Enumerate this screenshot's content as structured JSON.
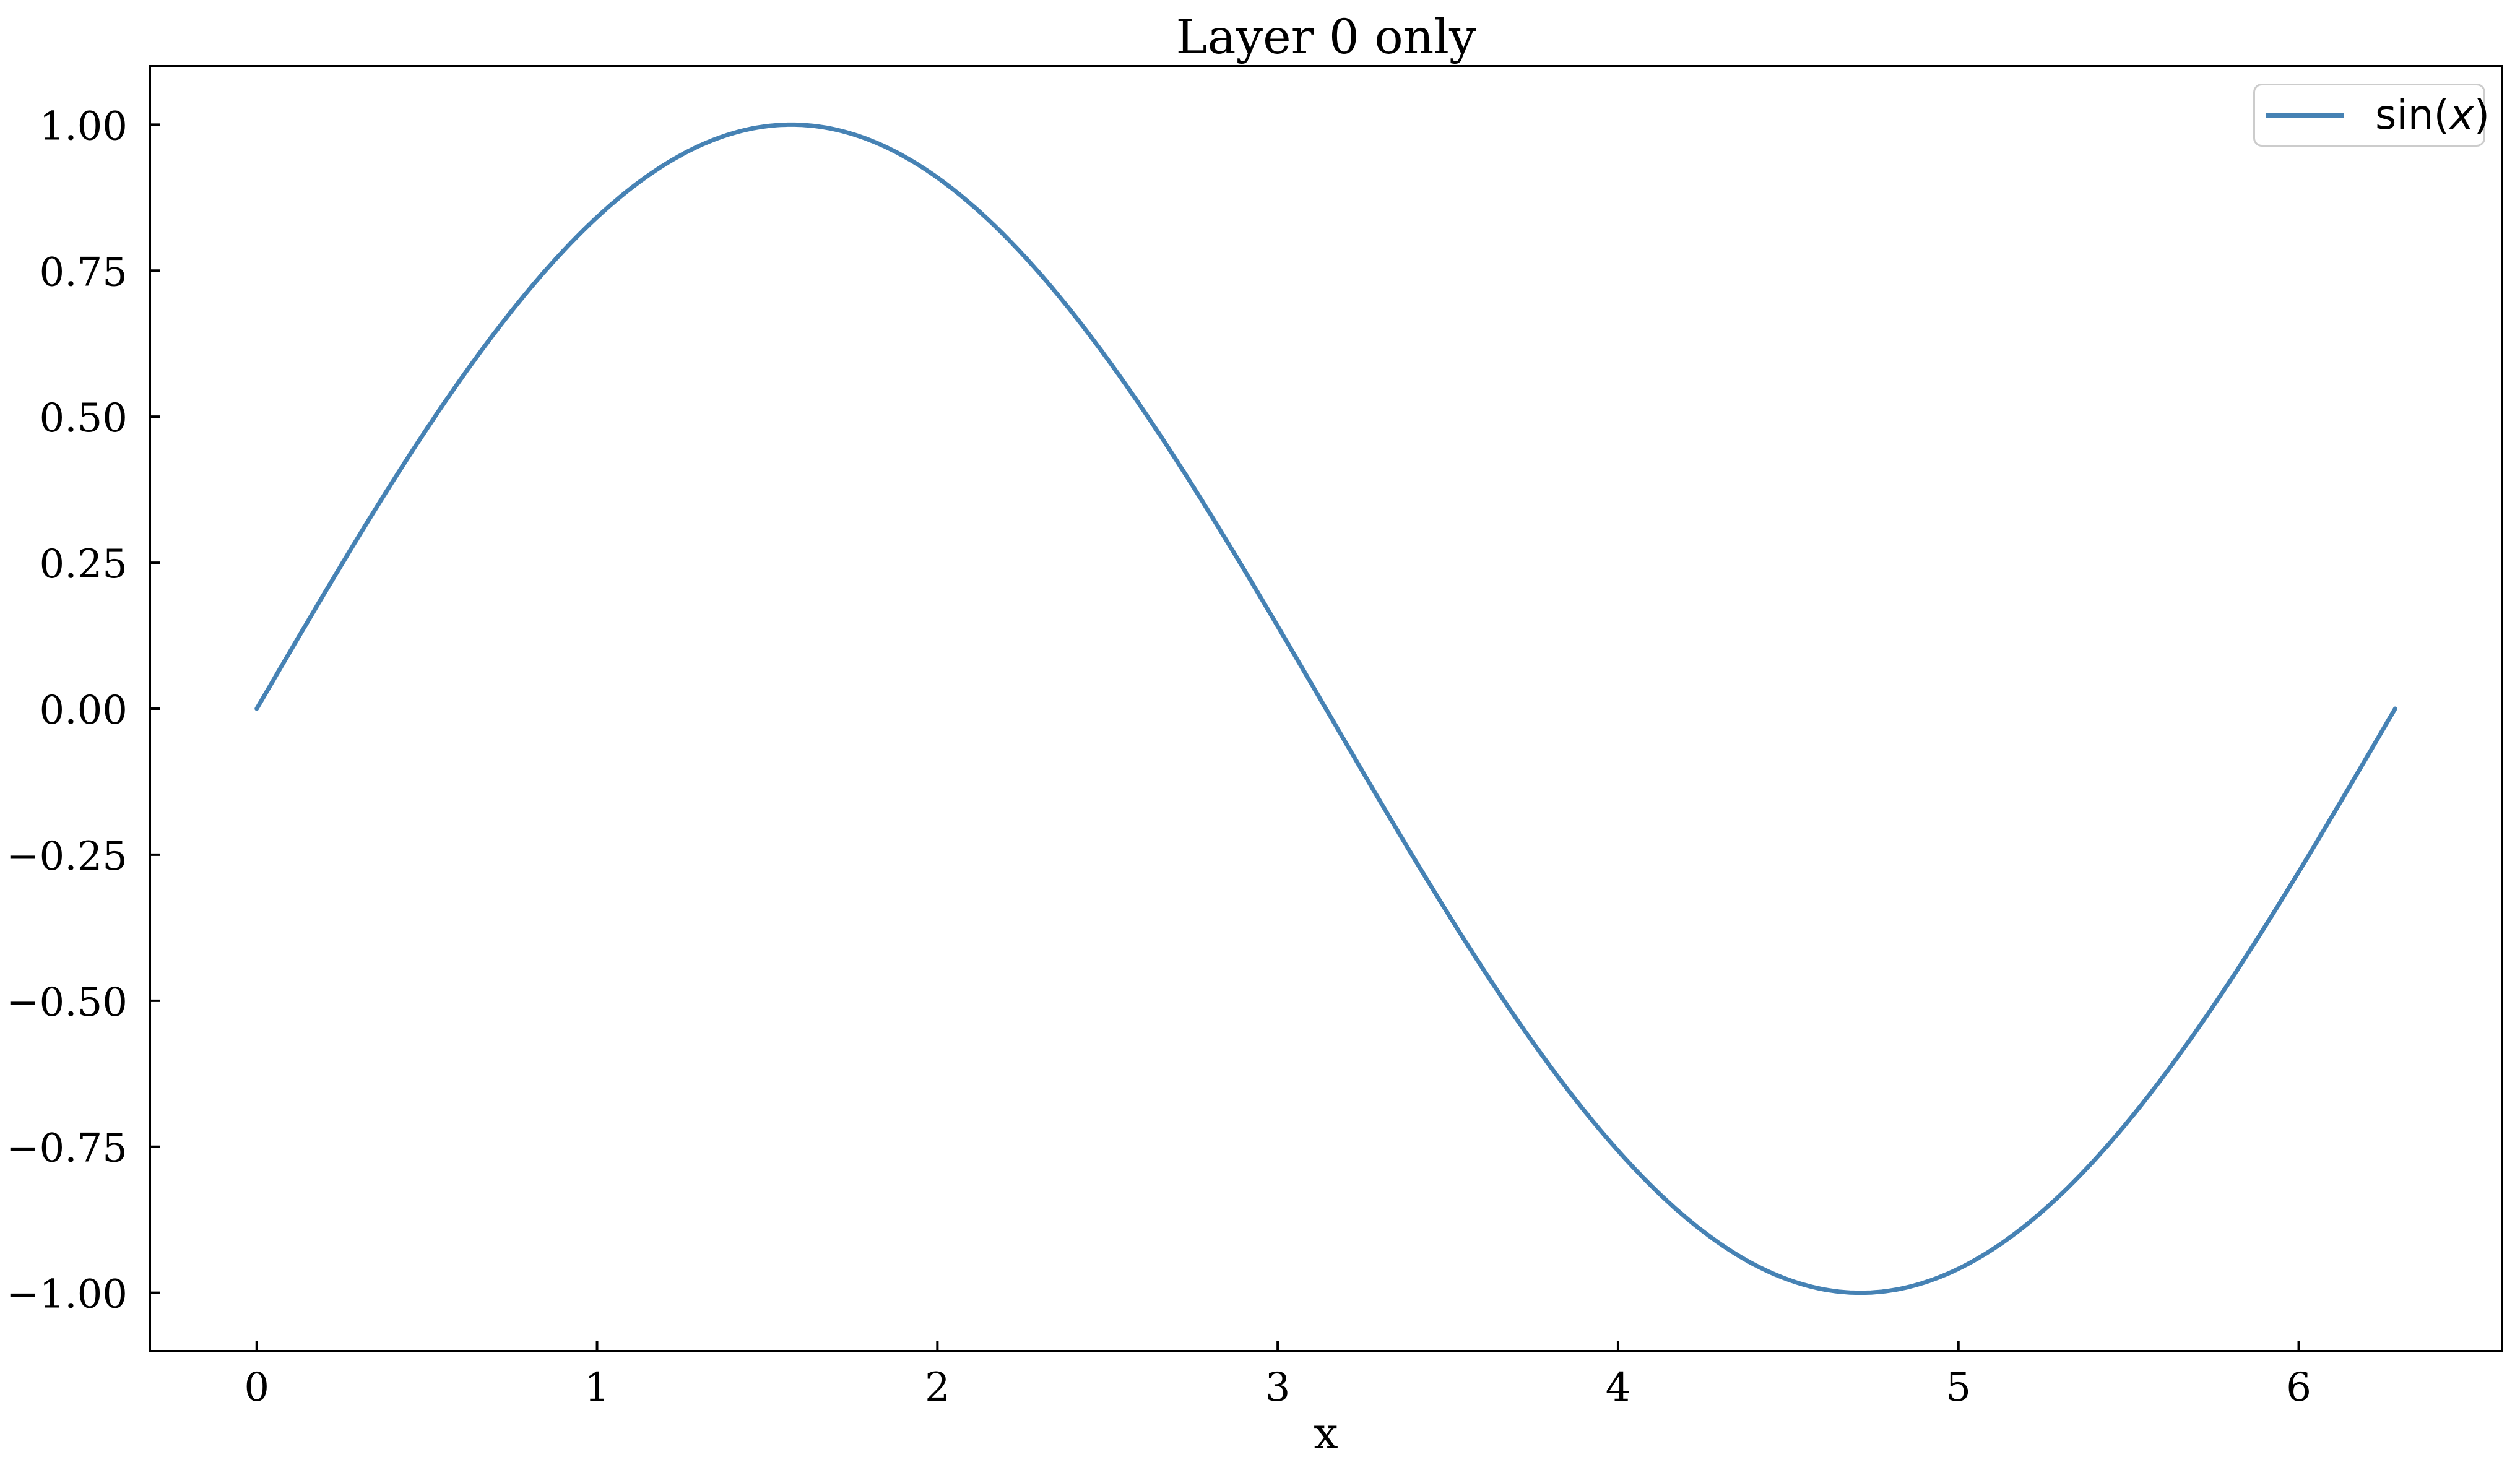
{
  "legend": {
    "label": "sin(x)",
    "parts": {
      "prefix": "sin(",
      "var": "x",
      "suffix": ")"
    },
    "line_color": "#4682b4",
    "border_color": "#cccccc",
    "position": "upper right"
  },
  "axes": {
    "spine_color": "#000000",
    "tick_color": "#000000",
    "tick_direction": "in"
  },
  "chart_data": {
    "type": "line",
    "title": "Layer 0 only",
    "xlabel": "x",
    "ylabel": "",
    "xlim": [
      -0.3142,
      6.5974
    ],
    "ylim": [
      -1.1,
      1.1
    ],
    "grid": false,
    "legend_position": "upper right",
    "x_ticks": {
      "values": [
        0,
        1,
        2,
        3,
        4,
        5,
        6
      ],
      "labels": [
        "0",
        "1",
        "2",
        "3",
        "4",
        "5",
        "6"
      ]
    },
    "y_ticks": {
      "values": [
        1.0,
        0.75,
        0.5,
        0.25,
        0.0,
        -0.25,
        -0.5,
        -0.75,
        -1.0
      ],
      "labels": [
        "1.00",
        "0.75",
        "0.50",
        "0.25",
        "0.00",
        "−0.25",
        "−0.50",
        "−0.75",
        "−1.00"
      ]
    },
    "series": [
      {
        "name": "sin(x)",
        "color": "#4682b4",
        "line_width": 7,
        "function": "sin",
        "x_min": 0,
        "x_max": 6.2832,
        "sample_points": [
          [
            0.0,
            0.0
          ],
          [
            0.262,
            0.259
          ],
          [
            0.524,
            0.5
          ],
          [
            0.785,
            0.707
          ],
          [
            1.047,
            0.866
          ],
          [
            1.309,
            0.966
          ],
          [
            1.571,
            1.0
          ],
          [
            1.833,
            0.966
          ],
          [
            2.094,
            0.866
          ],
          [
            2.356,
            0.707
          ],
          [
            2.618,
            0.5
          ],
          [
            2.88,
            0.259
          ],
          [
            3.142,
            0.0
          ],
          [
            3.403,
            -0.259
          ],
          [
            3.665,
            -0.5
          ],
          [
            3.927,
            -0.707
          ],
          [
            4.189,
            -0.866
          ],
          [
            4.451,
            -0.966
          ],
          [
            4.712,
            -1.0
          ],
          [
            4.974,
            -0.966
          ],
          [
            5.236,
            -0.866
          ],
          [
            5.498,
            -0.707
          ],
          [
            5.76,
            -0.5
          ],
          [
            6.021,
            -0.259
          ],
          [
            6.283,
            0.0
          ]
        ]
      }
    ]
  }
}
